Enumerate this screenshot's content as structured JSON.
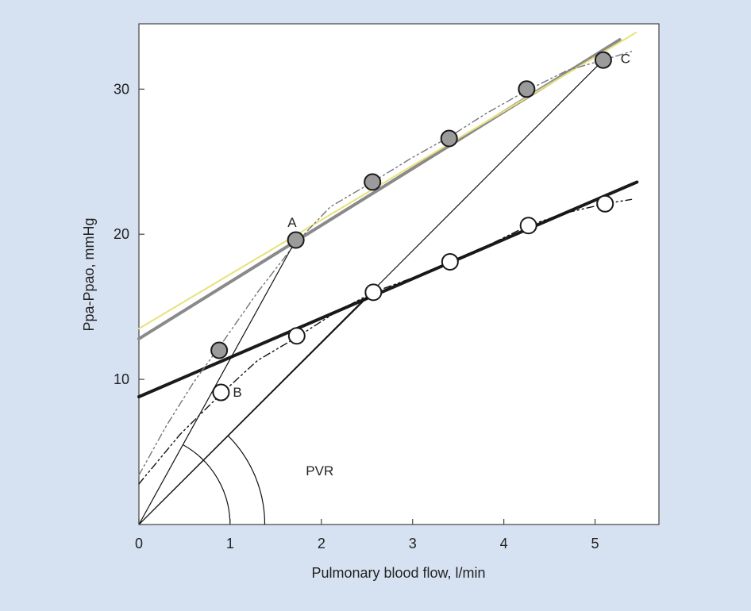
{
  "chart_data": {
    "type": "scatter",
    "title": "",
    "xlabel": "Pulmonary blood flow, l/min",
    "ylabel": "Ppa-Ppao, mmHg",
    "xlim": [
      0,
      5.7
    ],
    "ylim": [
      0,
      34.5
    ],
    "xticks": [
      0,
      1,
      2,
      3,
      4,
      5
    ],
    "yticks": [
      10,
      20,
      30
    ],
    "grid": false,
    "legend": "none",
    "colors": {
      "background": "#d6e1f2",
      "plot_area": "#ffffff",
      "filled_marker": "#9b9b9b",
      "open_marker": "#ffffff",
      "upper_fit": "#8a8a8a",
      "upper_fit_highlight": "#e8e27a",
      "lower_fit": "#1a1a1a",
      "thin_line": "#111111"
    },
    "series": [
      {
        "marker": "filled",
        "x": [
          0.88,
          1.72,
          2.56,
          3.4,
          4.25,
          5.09
        ],
        "y": [
          12.0,
          19.6,
          23.6,
          26.6,
          30.0,
          32.0
        ]
      },
      {
        "marker": "open",
        "x": [
          0.9,
          1.73,
          2.57,
          3.41,
          4.27,
          5.11
        ],
        "y": [
          9.1,
          13.0,
          16.0,
          18.1,
          20.6,
          22.1
        ]
      }
    ],
    "fit_lines": [
      {
        "style": "thick-gray",
        "x": [
          0,
          5.27
        ],
        "y": [
          12.8,
          33.4
        ]
      },
      {
        "style": "thin-yellow",
        "x": [
          0,
          5.45
        ],
        "y": [
          13.5,
          33.9
        ]
      },
      {
        "style": "thick-black",
        "x": [
          0,
          5.46
        ],
        "y": [
          8.8,
          23.6
        ]
      },
      {
        "style": "dash-dot-gray",
        "x": [
          0,
          0.3,
          0.6,
          0.9,
          1.3,
          1.72,
          2.1,
          2.56,
          3.0,
          3.4,
          3.8,
          4.25,
          4.7,
          5.09,
          5.4
        ],
        "y": [
          3.4,
          6.8,
          9.8,
          12.4,
          16.0,
          19.4,
          21.9,
          23.6,
          25.3,
          26.7,
          28.3,
          29.9,
          31.3,
          32.0,
          32.6
        ]
      },
      {
        "style": "dash-dot-black",
        "x": [
          0,
          0.45,
          0.9,
          1.3,
          1.73,
          2.15,
          2.57,
          3.0,
          3.41,
          3.85,
          4.27,
          4.7,
          5.11,
          5.4
        ],
        "y": [
          2.8,
          6.2,
          9.0,
          11.3,
          12.9,
          14.6,
          16.0,
          17.0,
          18.1,
          19.3,
          20.6,
          21.5,
          22.1,
          22.4
        ]
      }
    ],
    "rays": [
      {
        "x": [
          0,
          1.72
        ],
        "y": [
          0,
          19.6
        ]
      },
      {
        "x": [
          0,
          2.56
        ],
        "y": [
          0,
          16.0
        ]
      },
      {
        "x": [
          0,
          5.09
        ],
        "y": [
          0,
          32.0
        ]
      }
    ],
    "arcs": [
      {
        "origin": [
          0,
          0
        ],
        "through": [
          0.48,
          5.5
        ],
        "end_x": 1.1
      },
      {
        "origin": [
          0,
          0
        ],
        "through": [
          0.98,
          6.1
        ],
        "end_x": 1.58
      }
    ],
    "annotations": [
      {
        "text": "A",
        "x": 1.63,
        "y": 20.5
      },
      {
        "text": "B",
        "x": 1.03,
        "y": 8.8
      },
      {
        "text": "C",
        "x": 5.28,
        "y": 31.8
      },
      {
        "text": "PVR",
        "x": 1.83,
        "y": 3.4
      }
    ]
  }
}
